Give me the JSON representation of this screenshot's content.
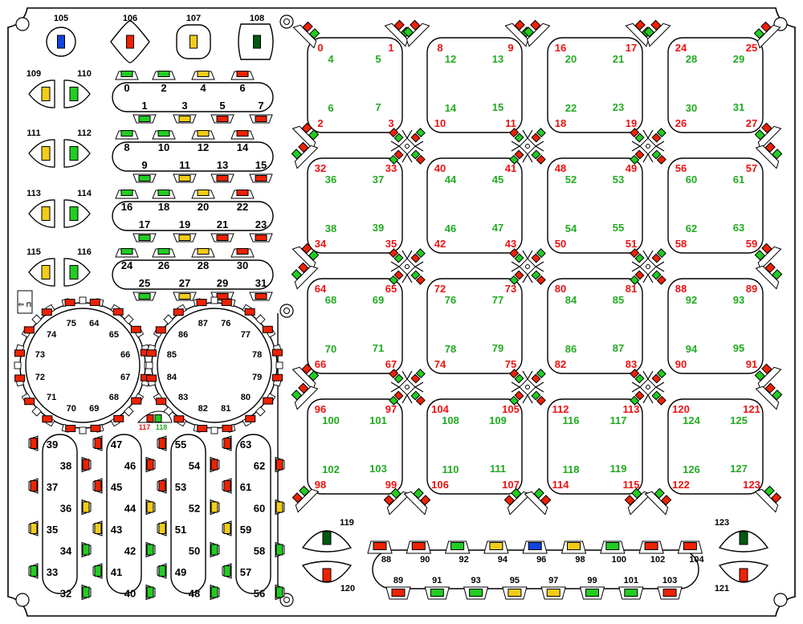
{
  "colors": {
    "red": "#ee2200",
    "green": "#22cc22",
    "yellow": "#f2cc18",
    "blue": "#1144dd",
    "darkgreen": "#005a10",
    "outline": "#000000",
    "label_red": "#ee1111",
    "label_green": "#22aa22"
  },
  "top_buttons": [
    {
      "label": "105",
      "color": "blue",
      "shape": "circle"
    },
    {
      "label": "106",
      "color": "red",
      "shape": "diamond"
    },
    {
      "label": "107",
      "color": "yellow",
      "shape": "squircle"
    },
    {
      "label": "108",
      "color": "darkgreen",
      "shape": "shield"
    }
  ],
  "side_buttons": [
    {
      "left": "109",
      "right": "110",
      "left_color": "yellow",
      "right_color": "green"
    },
    {
      "left": "111",
      "right": "112",
      "left_color": "yellow",
      "right_color": "green"
    },
    {
      "left": "113",
      "right": "114",
      "left_color": "yellow",
      "right_color": "green"
    },
    {
      "left": "115",
      "right": "116",
      "left_color": "yellow",
      "right_color": "green"
    }
  ],
  "strips": [
    {
      "top": [
        "0",
        "2",
        "4",
        "6"
      ],
      "bottom": [
        "1",
        "3",
        "5",
        "7"
      ],
      "top_colors": [
        "green",
        "green",
        "yellow",
        "red"
      ],
      "bottom_colors": [
        "green",
        "yellow",
        "red",
        "red"
      ]
    },
    {
      "top": [
        "8",
        "10",
        "12",
        "14"
      ],
      "bottom": [
        "9",
        "11",
        "13",
        "15"
      ],
      "top_colors": [
        "green",
        "green",
        "yellow",
        "red"
      ],
      "bottom_colors": [
        "green",
        "yellow",
        "red",
        "red"
      ]
    },
    {
      "top": [
        "16",
        "18",
        "20",
        "22"
      ],
      "bottom": [
        "17",
        "19",
        "21",
        "23"
      ],
      "top_colors": [
        "green",
        "green",
        "yellow",
        "red"
      ],
      "bottom_colors": [
        "green",
        "yellow",
        "red",
        "red"
      ]
    },
    {
      "top": [
        "24",
        "26",
        "28",
        "30"
      ],
      "bottom": [
        "25",
        "27",
        "29",
        "31"
      ],
      "top_colors": [
        "green",
        "green",
        "yellow",
        "red"
      ],
      "bottom_colors": [
        "green",
        "yellow",
        "red",
        "red"
      ]
    }
  ],
  "rings": [
    {
      "labels": [
        "64",
        "65",
        "66",
        "67",
        "68",
        "69",
        "70",
        "71",
        "72",
        "73",
        "74",
        "75"
      ]
    },
    {
      "labels": [
        "76",
        "77",
        "78",
        "79",
        "80",
        "81",
        "82",
        "83",
        "84",
        "85",
        "86",
        "87"
      ]
    }
  ],
  "mini_toggle": {
    "label_red": "117",
    "label_green": "118"
  },
  "columns": [
    {
      "labels": [
        "39",
        "38",
        "37",
        "36",
        "35",
        "34",
        "33",
        "32"
      ],
      "colors": [
        "red",
        "red",
        "red",
        "yellow",
        "yellow",
        "green",
        "green",
        "green"
      ]
    },
    {
      "labels": [
        "47",
        "46",
        "45",
        "44",
        "43",
        "42",
        "41",
        "40"
      ],
      "colors": [
        "red",
        "red",
        "red",
        "yellow",
        "yellow",
        "green",
        "green",
        "green"
      ]
    },
    {
      "labels": [
        "55",
        "54",
        "53",
        "52",
        "51",
        "50",
        "49",
        "48"
      ],
      "colors": [
        "red",
        "red",
        "red",
        "yellow",
        "yellow",
        "green",
        "green",
        "green"
      ]
    },
    {
      "labels": [
        "63",
        "62",
        "61",
        "60",
        "59",
        "58",
        "57",
        "56"
      ],
      "colors": [
        "red",
        "red",
        "red",
        "yellow",
        "yellow",
        "green",
        "green",
        "green"
      ]
    }
  ],
  "pads": [
    {
      "red": [
        "0",
        "1",
        "2",
        "3"
      ],
      "green": [
        "4",
        "5",
        "6",
        "7"
      ]
    },
    {
      "red": [
        "8",
        "9",
        "10",
        "11"
      ],
      "green": [
        "12",
        "13",
        "14",
        "15"
      ]
    },
    {
      "red": [
        "16",
        "17",
        "18",
        "19"
      ],
      "green": [
        "20",
        "21",
        "22",
        "23"
      ]
    },
    {
      "red": [
        "24",
        "25",
        "26",
        "27"
      ],
      "green": [
        "28",
        "29",
        "30",
        "31"
      ]
    },
    {
      "red": [
        "32",
        "33",
        "34",
        "35"
      ],
      "green": [
        "36",
        "37",
        "38",
        "39"
      ]
    },
    {
      "red": [
        "40",
        "41",
        "42",
        "43"
      ],
      "green": [
        "44",
        "45",
        "46",
        "47"
      ]
    },
    {
      "red": [
        "48",
        "49",
        "50",
        "51"
      ],
      "green": [
        "52",
        "53",
        "54",
        "55"
      ]
    },
    {
      "red": [
        "56",
        "57",
        "58",
        "59"
      ],
      "green": [
        "60",
        "61",
        "62",
        "63"
      ]
    },
    {
      "red": [
        "64",
        "65",
        "66",
        "67"
      ],
      "green": [
        "68",
        "69",
        "70",
        "71"
      ]
    },
    {
      "red": [
        "72",
        "73",
        "74",
        "75"
      ],
      "green": [
        "76",
        "77",
        "78",
        "79"
      ]
    },
    {
      "red": [
        "80",
        "81",
        "82",
        "83"
      ],
      "green": [
        "84",
        "85",
        "86",
        "87"
      ]
    },
    {
      "red": [
        "88",
        "89",
        "90",
        "91"
      ],
      "green": [
        "92",
        "93",
        "94",
        "95"
      ]
    },
    {
      "red": [
        "96",
        "97",
        "98",
        "99"
      ],
      "green": [
        "100",
        "101",
        "102",
        "103"
      ]
    },
    {
      "red": [
        "104",
        "105",
        "106",
        "107"
      ],
      "green": [
        "108",
        "109",
        "110",
        "111"
      ]
    },
    {
      "red": [
        "112",
        "113",
        "114",
        "115"
      ],
      "green": [
        "116",
        "117",
        "118",
        "119"
      ]
    },
    {
      "red": [
        "120",
        "121",
        "122",
        "123"
      ],
      "green": [
        "124",
        "125",
        "126",
        "127"
      ]
    }
  ],
  "bottom_buttons": [
    {
      "label": "119",
      "color": "darkgreen"
    },
    {
      "label": "120",
      "color": "red"
    },
    {
      "label": "123",
      "color": "darkgreen"
    },
    {
      "label": "121",
      "color": "red"
    }
  ],
  "bottom_strip": {
    "top": [
      "88",
      "90",
      "92",
      "94",
      "96",
      "98",
      "100",
      "102",
      "104"
    ],
    "top_colors": [
      "red",
      "red",
      "green",
      "yellow",
      "blue",
      "yellow",
      "green",
      "red",
      "red"
    ],
    "bottom": [
      "89",
      "91",
      "93",
      "95",
      "97",
      "99",
      "101",
      "103"
    ],
    "bottom_colors": [
      "red",
      "green",
      "green",
      "yellow",
      "yellow",
      "green",
      "green",
      "red"
    ]
  },
  "usb_glyph": "⇦ ⊓"
}
